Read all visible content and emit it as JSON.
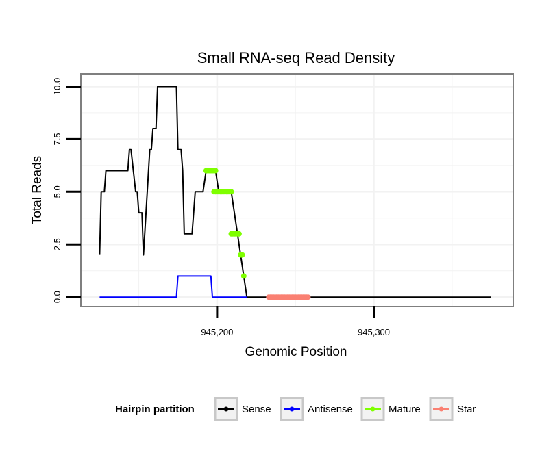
{
  "chart_data": {
    "type": "line",
    "title": "Small RNA-seq Read Density",
    "xlabel": "Genomic Position",
    "ylabel": "Total Reads",
    "xlim": [
      945113,
      945389
    ],
    "ylim": [
      -0.45,
      10.6
    ],
    "x_ticks": [
      {
        "value": 945200,
        "label": "945,200"
      },
      {
        "value": 945300,
        "label": "945,300"
      }
    ],
    "y_ticks": [
      {
        "value": 0,
        "label": "0.0"
      },
      {
        "value": 2.5,
        "label": "2.5"
      },
      {
        "value": 5,
        "label": "5.0"
      },
      {
        "value": 7.5,
        "label": "7.5"
      },
      {
        "value": 10,
        "label": "10.0"
      }
    ],
    "legend": {
      "title": "Hairpin partition",
      "position": "bottom",
      "entries": [
        {
          "label": "Sense",
          "color": "#000000"
        },
        {
          "label": "Antisense",
          "color": "#0000ff"
        },
        {
          "label": "Mature",
          "color": "#7fff00"
        },
        {
          "label": "Star",
          "color": "#fa8072"
        }
      ]
    },
    "series": [
      {
        "name": "Sense",
        "color": "#000000",
        "style": "line",
        "points": [
          [
            945125,
            2
          ],
          [
            945126,
            5
          ],
          [
            945128,
            5
          ],
          [
            945129,
            6
          ],
          [
            945143,
            6
          ],
          [
            945144,
            7
          ],
          [
            945145,
            7
          ],
          [
            945148,
            5
          ],
          [
            945149,
            5
          ],
          [
            945150,
            4
          ],
          [
            945152,
            4
          ],
          [
            945153,
            2
          ],
          [
            945157,
            7
          ],
          [
            945158,
            7
          ],
          [
            945159,
            8
          ],
          [
            945161,
            8
          ],
          [
            945162,
            10
          ],
          [
            945174,
            10
          ],
          [
            945175,
            7
          ],
          [
            945177,
            7
          ],
          [
            945178,
            6
          ],
          [
            945179,
            3
          ],
          [
            945184,
            3
          ],
          [
            945186,
            5
          ],
          [
            945191,
            5
          ],
          [
            945193,
            6
          ],
          [
            945199,
            6
          ],
          [
            945201,
            5
          ],
          [
            945209,
            5
          ],
          [
            945219,
            0
          ],
          [
            945375,
            0
          ]
        ]
      },
      {
        "name": "Antisense",
        "color": "#0000ff",
        "style": "line",
        "points": [
          [
            945125,
            0
          ],
          [
            945174,
            0
          ],
          [
            945175,
            1
          ],
          [
            945196,
            1
          ],
          [
            945197,
            0
          ],
          [
            945219,
            0
          ]
        ]
      },
      {
        "name": "Mature",
        "color": "#7fff00",
        "style": "points",
        "points": [
          [
            945193,
            6
          ],
          [
            945194,
            6
          ],
          [
            945195,
            6
          ],
          [
            945196,
            6
          ],
          [
            945197,
            6
          ],
          [
            945198,
            6
          ],
          [
            945199,
            6
          ],
          [
            945198,
            5
          ],
          [
            945199,
            5
          ],
          [
            945200,
            5
          ],
          [
            945201,
            5
          ],
          [
            945202,
            5
          ],
          [
            945203,
            5
          ],
          [
            945204,
            5
          ],
          [
            945205,
            5
          ],
          [
            945206,
            5
          ],
          [
            945207,
            5
          ],
          [
            945208,
            5
          ],
          [
            945209,
            5
          ],
          [
            945209,
            3
          ],
          [
            945210,
            3
          ],
          [
            945211,
            3
          ],
          [
            945212,
            3
          ],
          [
            945213,
            3
          ],
          [
            945214,
            3
          ],
          [
            945215,
            2
          ],
          [
            945216,
            2
          ],
          [
            945217,
            1
          ]
        ]
      },
      {
        "name": "Star",
        "color": "#fa8072",
        "style": "points",
        "points": [
          [
            945233,
            0
          ],
          [
            945234,
            0
          ],
          [
            945235,
            0
          ],
          [
            945236,
            0
          ],
          [
            945237,
            0
          ],
          [
            945238,
            0
          ],
          [
            945239,
            0
          ],
          [
            945240,
            0
          ],
          [
            945241,
            0
          ],
          [
            945242,
            0
          ],
          [
            945243,
            0
          ],
          [
            945244,
            0
          ],
          [
            945245,
            0
          ],
          [
            945246,
            0
          ],
          [
            945247,
            0
          ],
          [
            945248,
            0
          ],
          [
            945249,
            0
          ],
          [
            945250,
            0
          ],
          [
            945251,
            0
          ],
          [
            945252,
            0
          ],
          [
            945253,
            0
          ],
          [
            945254,
            0
          ],
          [
            945255,
            0
          ],
          [
            945256,
            0
          ],
          [
            945257,
            0
          ],
          [
            945258,
            0
          ]
        ]
      }
    ]
  }
}
